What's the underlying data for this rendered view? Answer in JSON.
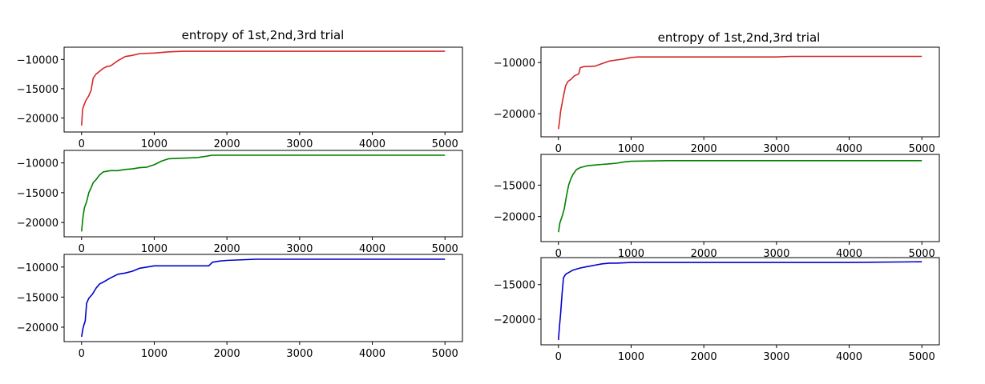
{
  "figure": {
    "columns": [
      {
        "title": "entropy of 1st,2nd,3rd trial"
      },
      {
        "title": "entropy of 1st,2nd,3rd trial"
      }
    ]
  },
  "chart_data": [
    {
      "type": "line",
      "panel": "left-top",
      "title": "entropy of 1st,2nd,3rd trial",
      "xlabel": "",
      "ylabel": "",
      "xlim": [
        -240,
        5240
      ],
      "ylim": [
        -22400,
        -7900
      ],
      "xticks": [
        0,
        1000,
        2000,
        3000,
        4000,
        5000
      ],
      "yticks": [
        -20000,
        -15000,
        -10000
      ],
      "color": "#d62728",
      "x": [
        0,
        15,
        30,
        60,
        100,
        130,
        160,
        200,
        250,
        300,
        350,
        400,
        500,
        600,
        700,
        800,
        1000,
        1200,
        1400,
        2000,
        3000,
        4000,
        5000
      ],
      "y": [
        -21300,
        -18500,
        -17900,
        -17000,
        -16200,
        -15300,
        -13200,
        -12500,
        -12000,
        -11500,
        -11200,
        -11100,
        -10200,
        -9500,
        -9300,
        -9000,
        -8900,
        -8700,
        -8600,
        -8600,
        -8600,
        -8600,
        -8600
      ]
    },
    {
      "type": "line",
      "panel": "left-middle",
      "title": "",
      "xlabel": "",
      "ylabel": "",
      "xlim": [
        -240,
        5240
      ],
      "ylim": [
        -22400,
        -7900
      ],
      "xticks": [
        0,
        1000,
        2000,
        3000,
        4000,
        5000
      ],
      "yticks": [
        -20000,
        -15000,
        -10000
      ],
      "color": "#008000",
      "x": [
        0,
        20,
        40,
        70,
        100,
        130,
        160,
        200,
        250,
        300,
        400,
        500,
        600,
        700,
        800,
        900,
        1000,
        1100,
        1200,
        1400,
        1600,
        1800,
        2000,
        3000,
        4000,
        5000
      ],
      "y": [
        -21500,
        -19000,
        -17500,
        -16500,
        -15000,
        -14200,
        -13300,
        -12800,
        -12000,
        -11500,
        -11300,
        -11300,
        -11100,
        -11000,
        -10800,
        -10700,
        -10300,
        -9700,
        -9300,
        -9200,
        -9100,
        -8700,
        -8700,
        -8700,
        -8700,
        -8700
      ]
    },
    {
      "type": "line",
      "panel": "left-bottom",
      "title": "",
      "xlabel": "",
      "ylabel": "",
      "xlim": [
        -240,
        5240
      ],
      "ylim": [
        -22400,
        -7900
      ],
      "xticks": [
        0,
        1000,
        2000,
        3000,
        4000,
        5000
      ],
      "yticks": [
        -20000,
        -15000,
        -10000
      ],
      "color": "#0000cc",
      "x": [
        0,
        15,
        30,
        50,
        70,
        100,
        150,
        200,
        250,
        300,
        400,
        500,
        600,
        700,
        800,
        900,
        1000,
        1500,
        1750,
        1800,
        1900,
        2000,
        2400,
        3000,
        4000,
        5000
      ],
      "y": [
        -21600,
        -20500,
        -19700,
        -19000,
        -16000,
        -15200,
        -14500,
        -13500,
        -12800,
        -12500,
        -11800,
        -11200,
        -11000,
        -10700,
        -10200,
        -10000,
        -9800,
        -9800,
        -9800,
        -9200,
        -9000,
        -8900,
        -8700,
        -8700,
        -8700,
        -8700
      ]
    },
    {
      "type": "line",
      "panel": "right-top",
      "title": "entropy of 1st,2nd,3rd trial",
      "xlabel": "",
      "ylabel": "",
      "xlim": [
        -240,
        5240
      ],
      "ylim": [
        -24500,
        -7000
      ],
      "xticks": [
        0,
        1000,
        2000,
        3000,
        4000,
        5000
      ],
      "yticks": [
        -20000,
        -10000
      ],
      "color": "#d62728",
      "x": [
        0,
        15,
        30,
        50,
        70,
        100,
        130,
        170,
        220,
        280,
        300,
        350,
        500,
        600,
        700,
        800,
        900,
        1000,
        1100,
        2000,
        3000,
        3200,
        4000,
        5000
      ],
      "y": [
        -23000,
        -21500,
        -19500,
        -18000,
        -16500,
        -14500,
        -13700,
        -13300,
        -12600,
        -12200,
        -11000,
        -10800,
        -10700,
        -10200,
        -9700,
        -9500,
        -9300,
        -9000,
        -8900,
        -8900,
        -8900,
        -8800,
        -8800,
        -8800
      ]
    },
    {
      "type": "line",
      "panel": "right-middle",
      "title": "",
      "xlabel": "",
      "ylabel": "",
      "xlim": [
        -240,
        5240
      ],
      "ylim": [
        -24000,
        -10100
      ],
      "xticks": [
        0,
        1000,
        2000,
        3000,
        4000,
        5000
      ],
      "yticks": [
        -20000,
        -15000
      ],
      "color": "#008000",
      "x": [
        0,
        20,
        50,
        80,
        110,
        140,
        170,
        200,
        250,
        300,
        400,
        500,
        600,
        700,
        800,
        900,
        1000,
        1500,
        2000,
        3000,
        4000,
        5000
      ],
      "y": [
        -22500,
        -21000,
        -20000,
        -18800,
        -16800,
        -15000,
        -14000,
        -13300,
        -12500,
        -12200,
        -11900,
        -11800,
        -11700,
        -11600,
        -11500,
        -11300,
        -11200,
        -11100,
        -11100,
        -11100,
        -11100,
        -11100
      ]
    },
    {
      "type": "line",
      "panel": "right-bottom",
      "title": "",
      "xlabel": "",
      "ylabel": "",
      "xlim": [
        -240,
        5240
      ],
      "ylim": [
        -23700,
        -11100
      ],
      "xticks": [
        0,
        1000,
        2000,
        3000,
        4000,
        5000
      ],
      "yticks": [
        -20000,
        -15000
      ],
      "color": "#0000cc",
      "x": [
        0,
        15,
        30,
        50,
        70,
        100,
        150,
        200,
        300,
        400,
        500,
        600,
        700,
        800,
        1000,
        2000,
        3000,
        4000,
        5000
      ],
      "y": [
        -23000,
        -21000,
        -19200,
        -16300,
        -14000,
        -13500,
        -13200,
        -12900,
        -12600,
        -12400,
        -12200,
        -12000,
        -11900,
        -11900,
        -11800,
        -11800,
        -11800,
        -11800,
        -11700
      ]
    }
  ]
}
